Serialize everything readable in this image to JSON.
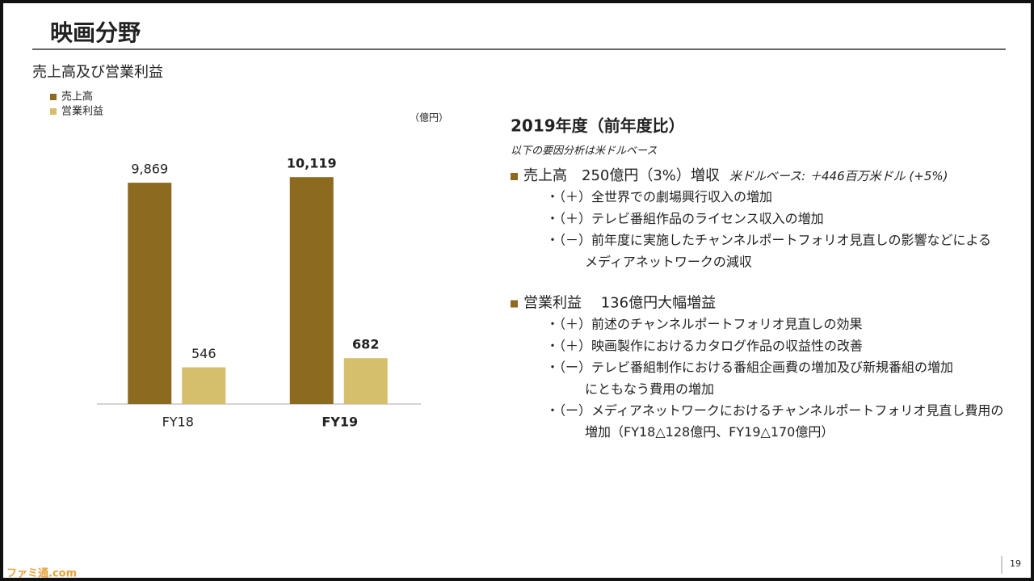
{
  "header": {
    "title": "映画分野",
    "subtitle": "売上高及び営業利益"
  },
  "chart_data": {
    "type": "bar",
    "unit": "（億円）",
    "categories": [
      "FY18",
      "FY19"
    ],
    "series": [
      {
        "name": "売上高",
        "color": "#8c6a1f",
        "values": [
          9869,
          10119
        ],
        "value_labels": [
          "9,869",
          "10,119"
        ]
      },
      {
        "name": "営業利益",
        "color": "#d6bf6c",
        "axis": "y2",
        "values": [
          546,
          682
        ],
        "value_labels": [
          "546",
          "682"
        ]
      }
    ],
    "ylim": [
      0,
      12000
    ],
    "y2lim": [
      0,
      4000
    ]
  },
  "analysis": {
    "title": "2019年度（前年度比）",
    "note": "以下の要因分析は米ドルベース",
    "sections": [
      {
        "heading": "売上高　250億円（3%）増収",
        "heading_note": "米ドルベース: ＋446百万米ドル (+5%)",
        "items": [
          [
            "・（＋）全世界での劇場興行収入の増加"
          ],
          [
            "・（＋）テレビ番組作品のライセンス収入の増加"
          ],
          [
            "・（－）前年度に実施したチャンネルポートフォリオ見直しの影響などによる",
            "メディアネットワークの減収"
          ]
        ]
      },
      {
        "heading": "営業利益　 136億円大幅増益",
        "items": [
          [
            "・（＋）前述のチャンネルポートフォリオ見直しの効果"
          ],
          [
            "・（＋）映画製作におけるカタログ作品の収益性の改善"
          ],
          [
            "・（ー）テレビ番組制作における番組企画費の増加及び新規番組の増加",
            "にともなう費用の増加"
          ],
          [
            "・（ー）メディアネットワークにおけるチャンネルポートフォリオ見直し費用の",
            "増加（FY18△128億円、FY19△170億円）"
          ]
        ]
      }
    ]
  },
  "footer": {
    "page": "19",
    "watermark": "ファミ通.com"
  }
}
